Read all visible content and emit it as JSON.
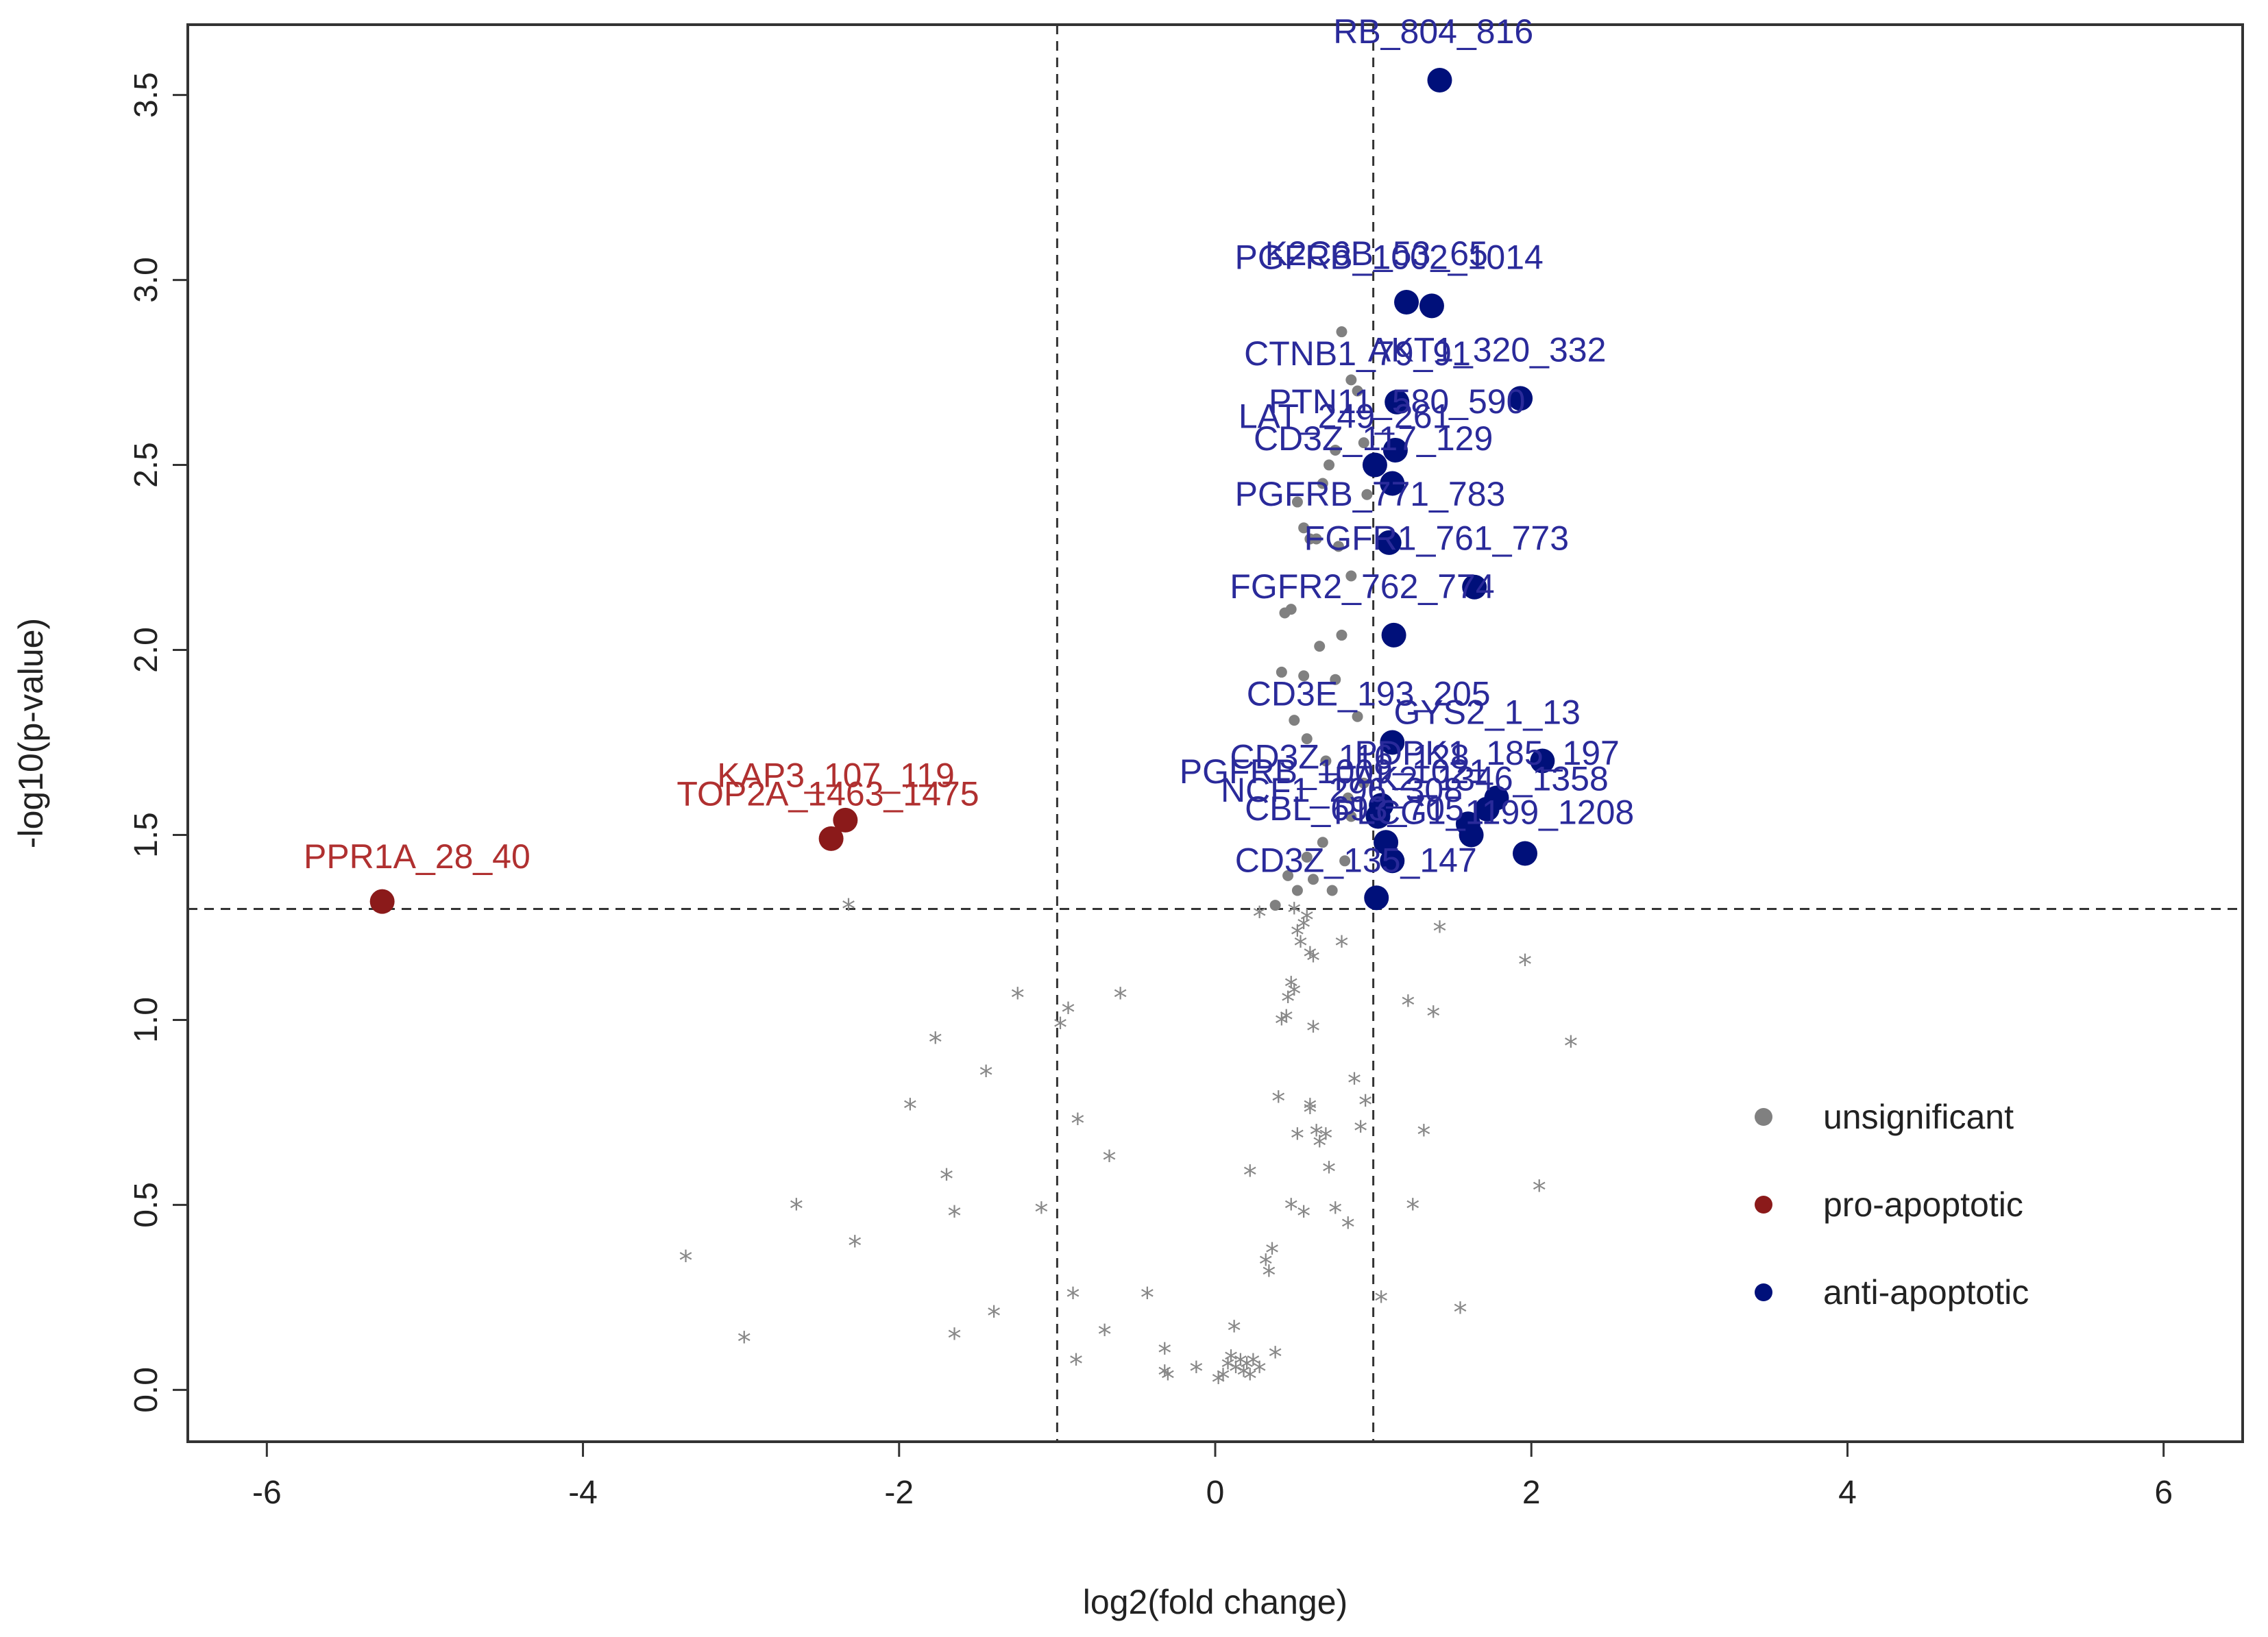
{
  "chart_data": {
    "type": "scatter",
    "title": "",
    "xlabel": "log2(fold change)",
    "ylabel": "-log10(p-value)",
    "xlim": [
      -6.5,
      6.5
    ],
    "ylim": [
      -0.14,
      3.69
    ],
    "x_ticks": [
      "-6",
      "-4",
      "-2",
      "0",
      "2",
      "4",
      "6"
    ],
    "y_ticks": [
      "0.0",
      "0.5",
      "1.0",
      "1.5",
      "2.0",
      "2.5",
      "3.0",
      "3.5"
    ],
    "thresholds": {
      "x": [
        -1,
        1
      ],
      "y": 1.3
    },
    "colors": {
      "unsignificant": "#808080",
      "pro": "#8B1A1A",
      "anti": "#00107A",
      "label_pro": "#B03030",
      "label_anti": "#2A2A9A"
    },
    "legend": {
      "position": "right",
      "items": [
        {
          "label": "unsignificant",
          "color": "#808080"
        },
        {
          "label": "pro-apoptotic",
          "color": "#8B1A1A"
        },
        {
          "label": "anti-apoptotic",
          "color": "#00107A"
        }
      ]
    },
    "pro_apoptotic": [
      {
        "x": -5.27,
        "y": 1.32,
        "label": "PPR1A_28_40"
      },
      {
        "x": -2.34,
        "y": 1.54,
        "label": "KAP3_107_119"
      },
      {
        "x": -2.43,
        "y": 1.49,
        "label": "TOP2A_1463_1475"
      }
    ],
    "anti_apoptotic": [
      {
        "x": 1.42,
        "y": 3.54,
        "label": "RB_804_816"
      },
      {
        "x": 1.21,
        "y": 2.94,
        "label": "PGFRB_1002_1014"
      },
      {
        "x": 1.37,
        "y": 2.93,
        "label": "K2C6B_53_65"
      },
      {
        "x": 1.15,
        "y": 2.67,
        "label": "CTNB1_79_91"
      },
      {
        "x": 1.93,
        "y": 2.68,
        "label": "AKT1_320_332"
      },
      {
        "x": 1.14,
        "y": 2.54,
        "label": "PTN11_580_590"
      },
      {
        "x": 1.01,
        "y": 2.5,
        "label": "LAT_249_261"
      },
      {
        "x": 1.12,
        "y": 2.45,
        "label": "CD3Z_117_129"
      },
      {
        "x": 1.1,
        "y": 2.29,
        "label": "PGFRB_771_783"
      },
      {
        "x": 1.64,
        "y": 2.17,
        "label": "FGFR1_761_773"
      },
      {
        "x": 1.13,
        "y": 2.04,
        "label": "FGFR2_762_774"
      },
      {
        "x": 1.12,
        "y": 1.75,
        "label": "CD3E_193_205"
      },
      {
        "x": 2.07,
        "y": 1.7,
        "label": "GYS2_1_13"
      },
      {
        "x": 1.05,
        "y": 1.58,
        "label": "CD3Z_116_128"
      },
      {
        "x": 1.78,
        "y": 1.6,
        "label": "PDPK1_185_197"
      },
      {
        "x": 1.03,
        "y": 1.55,
        "label": "PGFRB_1009_1021"
      },
      {
        "x": 1.6,
        "y": 1.53,
        "label": "NCF1_296_308"
      },
      {
        "x": 1.72,
        "y": 1.57,
        "label": "FAK2_1346_1358"
      },
      {
        "x": 1.08,
        "y": 1.48,
        "label": "CBL_693_705"
      },
      {
        "x": 1.62,
        "y": 1.5,
        "label": "PLCG1_1199_1208"
      },
      {
        "x": 1.96,
        "y": 1.45,
        "label": "CD3Z_135_147"
      },
      {
        "x": 1.12,
        "y": 1.43,
        "label": ""
      },
      {
        "x": 1.02,
        "y": 1.33,
        "label": ""
      }
    ],
    "anti_label_positions": [
      {
        "label": "RB_804_816",
        "lx": 1.38,
        "ly": 3.64
      },
      {
        "label": "PGFRB_1002_1014",
        "lx": 1.1,
        "ly": 3.03
      },
      {
        "label": "K2C6B_53_65",
        "lx": 1.02,
        "ly": 3.04
      },
      {
        "label": "CTNB1_79_91",
        "lx": 0.9,
        "ly": 2.77
      },
      {
        "label": "AKT1_320_332",
        "lx": 1.72,
        "ly": 2.78
      },
      {
        "label": "PTN11_580_590",
        "lx": 1.15,
        "ly": 2.64
      },
      {
        "label": "LAT_249_261",
        "lx": 0.82,
        "ly": 2.6
      },
      {
        "label": "CD3Z_117_129",
        "lx": 1.0,
        "ly": 2.54
      },
      {
        "label": "PGFRB_771_783",
        "lx": 0.98,
        "ly": 2.39
      },
      {
        "label": "FGFR1_761_773",
        "lx": 1.4,
        "ly": 2.27
      },
      {
        "label": "FGFR2_762_774",
        "lx": 0.93,
        "ly": 2.14
      },
      {
        "label": "CD3E_193_205",
        "lx": 0.97,
        "ly": 1.85
      },
      {
        "label": "GYS2_1_13",
        "lx": 1.72,
        "ly": 1.8
      },
      {
        "label": "CD3Z_116_128",
        "lx": 0.85,
        "ly": 1.68
      },
      {
        "label": "PDPK1_185_197",
        "lx": 1.72,
        "ly": 1.69
      },
      {
        "label": "PGFRB_1009_1021",
        "lx": 0.75,
        "ly": 1.64
      },
      {
        "label": "NCF1_296_308",
        "lx": 0.8,
        "ly": 1.59
      },
      {
        "label": "FAK2_1346_1358",
        "lx": 1.62,
        "ly": 1.62
      },
      {
        "label": "CBL_693_705",
        "lx": 0.88,
        "ly": 1.54
      },
      {
        "label": "PLCG1_1199_1208",
        "lx": 1.7,
        "ly": 1.53
      },
      {
        "label": "CD3Z_135_147",
        "lx": 0.89,
        "ly": 1.4
      }
    ],
    "unsignificant": [
      [
        -3.35,
        0.35
      ],
      [
        -2.98,
        0.13
      ],
      [
        -2.65,
        0.49
      ],
      [
        -2.28,
        0.39
      ],
      [
        -2.32,
        1.3
      ],
      [
        -1.93,
        0.76
      ],
      [
        -1.77,
        0.94
      ],
      [
        -1.7,
        0.57
      ],
      [
        -1.65,
        0.47
      ],
      [
        -1.65,
        0.14
      ],
      [
        -1.45,
        0.85
      ],
      [
        -1.4,
        0.2
      ],
      [
        -1.25,
        1.06
      ],
      [
        -1.1,
        0.48
      ],
      [
        -0.98,
        0.98
      ],
      [
        -0.93,
        1.02
      ],
      [
        -0.9,
        0.25
      ],
      [
        -0.88,
        0.07
      ],
      [
        -0.87,
        0.72
      ],
      [
        -0.67,
        0.62
      ],
      [
        -0.7,
        0.15
      ],
      [
        -0.6,
        1.06
      ],
      [
        -0.43,
        0.25
      ],
      [
        -0.32,
        0.1
      ],
      [
        -0.32,
        0.04
      ],
      [
        -0.3,
        0.03
      ],
      [
        -0.12,
        0.05
      ],
      [
        0.02,
        0.02
      ],
      [
        0.05,
        0.03
      ],
      [
        0.08,
        0.06
      ],
      [
        0.1,
        0.08
      ],
      [
        0.12,
        0.16
      ],
      [
        0.13,
        0.05
      ],
      [
        0.16,
        0.07
      ],
      [
        0.18,
        0.04
      ],
      [
        0.2,
        0.06
      ],
      [
        0.22,
        0.03
      ],
      [
        0.24,
        0.07
      ],
      [
        0.28,
        0.05
      ],
      [
        0.38,
        0.09
      ],
      [
        0.22,
        0.58
      ],
      [
        0.32,
        0.34
      ],
      [
        0.34,
        0.31
      ],
      [
        0.36,
        0.37
      ],
      [
        0.4,
        0.78
      ],
      [
        0.42,
        0.99
      ],
      [
        0.45,
        1.0
      ],
      [
        0.46,
        1.05
      ],
      [
        0.48,
        1.09
      ],
      [
        0.5,
        1.07
      ],
      [
        0.5,
        1.29
      ],
      [
        0.52,
        1.23
      ],
      [
        0.54,
        1.2
      ],
      [
        0.56,
        1.25
      ],
      [
        0.58,
        1.27
      ],
      [
        0.6,
        1.17
      ],
      [
        0.62,
        1.16
      ],
      [
        0.48,
        0.49
      ],
      [
        0.52,
        0.68
      ],
      [
        0.56,
        0.47
      ],
      [
        0.6,
        0.75
      ],
      [
        0.62,
        0.97
      ],
      [
        0.64,
        0.69
      ],
      [
        0.66,
        0.66
      ],
      [
        0.7,
        0.68
      ],
      [
        0.72,
        0.59
      ],
      [
        0.76,
        0.48
      ],
      [
        0.8,
        1.2
      ],
      [
        0.84,
        0.44
      ],
      [
        0.88,
        0.83
      ],
      [
        0.92,
        0.7
      ],
      [
        0.95,
        0.77
      ],
      [
        1.05,
        0.24
      ],
      [
        1.25,
        0.49
      ],
      [
        1.32,
        0.69
      ],
      [
        1.38,
        1.01
      ],
      [
        1.42,
        1.24
      ],
      [
        1.22,
        1.04
      ],
      [
        1.55,
        0.21
      ],
      [
        1.96,
        1.15
      ],
      [
        2.05,
        0.54
      ],
      [
        2.25,
        0.93
      ],
      [
        0.28,
        1.28
      ],
      [
        0.38,
        1.31
      ],
      [
        0.6,
        0.76
      ],
      [
        0.42,
        1.94
      ],
      [
        0.5,
        1.81
      ],
      [
        0.56,
        1.93
      ],
      [
        0.58,
        1.76
      ],
      [
        0.44,
        2.1
      ],
      [
        0.48,
        2.11
      ],
      [
        0.52,
        2.4
      ],
      [
        0.56,
        2.33
      ],
      [
        0.6,
        2.3
      ],
      [
        0.64,
        2.3
      ],
      [
        0.68,
        2.45
      ],
      [
        0.72,
        2.5
      ],
      [
        0.76,
        2.54
      ],
      [
        0.8,
        2.86
      ],
      [
        0.86,
        2.73
      ],
      [
        0.9,
        2.7
      ],
      [
        0.94,
        2.56
      ],
      [
        0.96,
        2.42
      ],
      [
        0.9,
        1.82
      ],
      [
        0.94,
        1.64
      ],
      [
        0.86,
        1.55
      ],
      [
        0.82,
        1.43
      ],
      [
        0.58,
        1.44
      ],
      [
        0.68,
        1.48
      ],
      [
        0.74,
        1.35
      ],
      [
        0.62,
        1.38
      ],
      [
        0.52,
        1.35
      ],
      [
        0.46,
        1.39
      ],
      [
        0.7,
        1.7
      ],
      [
        0.76,
        1.92
      ],
      [
        0.8,
        2.04
      ],
      [
        0.86,
        2.2
      ],
      [
        0.66,
        2.01
      ],
      [
        0.78,
        2.28
      ],
      [
        0.84,
        1.6
      ]
    ]
  }
}
